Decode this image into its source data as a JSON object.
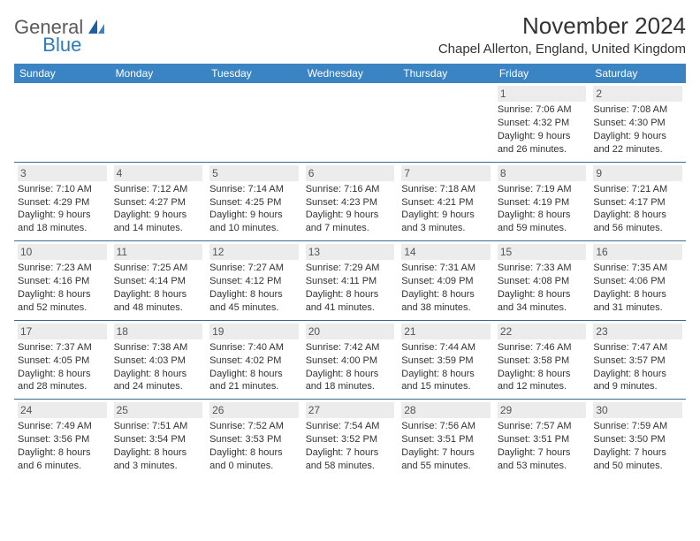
{
  "brand": {
    "part1": "General",
    "part2": "Blue"
  },
  "title": "November 2024",
  "location": "Chapel Allerton, England, United Kingdom",
  "colors": {
    "header_bg": "#3b84c4",
    "header_text": "#ffffff",
    "cell_border": "#3b6a94",
    "daynum_bg": "#ececec",
    "brand_gray": "#5a5a5a",
    "brand_blue": "#2b7bbf",
    "body_text": "#333333"
  },
  "typography": {
    "month_title_fontsize": 26,
    "location_fontsize": 15,
    "dayheader_fontsize": 12,
    "cell_fontsize": 11,
    "logo_fontsize": 22
  },
  "day_headers": [
    "Sunday",
    "Monday",
    "Tuesday",
    "Wednesday",
    "Thursday",
    "Friday",
    "Saturday"
  ],
  "weeks": [
    [
      null,
      null,
      null,
      null,
      null,
      {
        "n": "1",
        "sr": "Sunrise: 7:06 AM",
        "ss": "Sunset: 4:32 PM",
        "dl": "Daylight: 9 hours and 26 minutes."
      },
      {
        "n": "2",
        "sr": "Sunrise: 7:08 AM",
        "ss": "Sunset: 4:30 PM",
        "dl": "Daylight: 9 hours and 22 minutes."
      }
    ],
    [
      {
        "n": "3",
        "sr": "Sunrise: 7:10 AM",
        "ss": "Sunset: 4:29 PM",
        "dl": "Daylight: 9 hours and 18 minutes."
      },
      {
        "n": "4",
        "sr": "Sunrise: 7:12 AM",
        "ss": "Sunset: 4:27 PM",
        "dl": "Daylight: 9 hours and 14 minutes."
      },
      {
        "n": "5",
        "sr": "Sunrise: 7:14 AM",
        "ss": "Sunset: 4:25 PM",
        "dl": "Daylight: 9 hours and 10 minutes."
      },
      {
        "n": "6",
        "sr": "Sunrise: 7:16 AM",
        "ss": "Sunset: 4:23 PM",
        "dl": "Daylight: 9 hours and 7 minutes."
      },
      {
        "n": "7",
        "sr": "Sunrise: 7:18 AM",
        "ss": "Sunset: 4:21 PM",
        "dl": "Daylight: 9 hours and 3 minutes."
      },
      {
        "n": "8",
        "sr": "Sunrise: 7:19 AM",
        "ss": "Sunset: 4:19 PM",
        "dl": "Daylight: 8 hours and 59 minutes."
      },
      {
        "n": "9",
        "sr": "Sunrise: 7:21 AM",
        "ss": "Sunset: 4:17 PM",
        "dl": "Daylight: 8 hours and 56 minutes."
      }
    ],
    [
      {
        "n": "10",
        "sr": "Sunrise: 7:23 AM",
        "ss": "Sunset: 4:16 PM",
        "dl": "Daylight: 8 hours and 52 minutes."
      },
      {
        "n": "11",
        "sr": "Sunrise: 7:25 AM",
        "ss": "Sunset: 4:14 PM",
        "dl": "Daylight: 8 hours and 48 minutes."
      },
      {
        "n": "12",
        "sr": "Sunrise: 7:27 AM",
        "ss": "Sunset: 4:12 PM",
        "dl": "Daylight: 8 hours and 45 minutes."
      },
      {
        "n": "13",
        "sr": "Sunrise: 7:29 AM",
        "ss": "Sunset: 4:11 PM",
        "dl": "Daylight: 8 hours and 41 minutes."
      },
      {
        "n": "14",
        "sr": "Sunrise: 7:31 AM",
        "ss": "Sunset: 4:09 PM",
        "dl": "Daylight: 8 hours and 38 minutes."
      },
      {
        "n": "15",
        "sr": "Sunrise: 7:33 AM",
        "ss": "Sunset: 4:08 PM",
        "dl": "Daylight: 8 hours and 34 minutes."
      },
      {
        "n": "16",
        "sr": "Sunrise: 7:35 AM",
        "ss": "Sunset: 4:06 PM",
        "dl": "Daylight: 8 hours and 31 minutes."
      }
    ],
    [
      {
        "n": "17",
        "sr": "Sunrise: 7:37 AM",
        "ss": "Sunset: 4:05 PM",
        "dl": "Daylight: 8 hours and 28 minutes."
      },
      {
        "n": "18",
        "sr": "Sunrise: 7:38 AM",
        "ss": "Sunset: 4:03 PM",
        "dl": "Daylight: 8 hours and 24 minutes."
      },
      {
        "n": "19",
        "sr": "Sunrise: 7:40 AM",
        "ss": "Sunset: 4:02 PM",
        "dl": "Daylight: 8 hours and 21 minutes."
      },
      {
        "n": "20",
        "sr": "Sunrise: 7:42 AM",
        "ss": "Sunset: 4:00 PM",
        "dl": "Daylight: 8 hours and 18 minutes."
      },
      {
        "n": "21",
        "sr": "Sunrise: 7:44 AM",
        "ss": "Sunset: 3:59 PM",
        "dl": "Daylight: 8 hours and 15 minutes."
      },
      {
        "n": "22",
        "sr": "Sunrise: 7:46 AM",
        "ss": "Sunset: 3:58 PM",
        "dl": "Daylight: 8 hours and 12 minutes."
      },
      {
        "n": "23",
        "sr": "Sunrise: 7:47 AM",
        "ss": "Sunset: 3:57 PM",
        "dl": "Daylight: 8 hours and 9 minutes."
      }
    ],
    [
      {
        "n": "24",
        "sr": "Sunrise: 7:49 AM",
        "ss": "Sunset: 3:56 PM",
        "dl": "Daylight: 8 hours and 6 minutes."
      },
      {
        "n": "25",
        "sr": "Sunrise: 7:51 AM",
        "ss": "Sunset: 3:54 PM",
        "dl": "Daylight: 8 hours and 3 minutes."
      },
      {
        "n": "26",
        "sr": "Sunrise: 7:52 AM",
        "ss": "Sunset: 3:53 PM",
        "dl": "Daylight: 8 hours and 0 minutes."
      },
      {
        "n": "27",
        "sr": "Sunrise: 7:54 AM",
        "ss": "Sunset: 3:52 PM",
        "dl": "Daylight: 7 hours and 58 minutes."
      },
      {
        "n": "28",
        "sr": "Sunrise: 7:56 AM",
        "ss": "Sunset: 3:51 PM",
        "dl": "Daylight: 7 hours and 55 minutes."
      },
      {
        "n": "29",
        "sr": "Sunrise: 7:57 AM",
        "ss": "Sunset: 3:51 PM",
        "dl": "Daylight: 7 hours and 53 minutes."
      },
      {
        "n": "30",
        "sr": "Sunrise: 7:59 AM",
        "ss": "Sunset: 3:50 PM",
        "dl": "Daylight: 7 hours and 50 minutes."
      }
    ]
  ]
}
